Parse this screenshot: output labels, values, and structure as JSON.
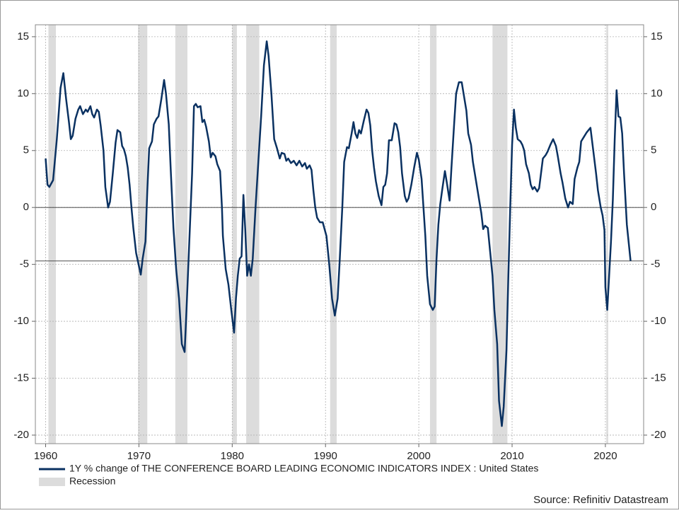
{
  "chart_data": {
    "type": "line",
    "x": [
      1960.0,
      1960.2,
      1960.4,
      1960.8,
      1961.2,
      1961.6,
      1961.9,
      1962.2,
      1962.5,
      1962.7,
      1962.9,
      1963.2,
      1963.5,
      1963.7,
      1964.0,
      1964.3,
      1964.5,
      1964.8,
      1965.0,
      1965.2,
      1965.5,
      1965.7,
      1965.9,
      1966.2,
      1966.4,
      1966.7,
      1966.9,
      1967.2,
      1967.5,
      1967.7,
      1968.0,
      1968.2,
      1968.4,
      1968.6,
      1968.8,
      1969.0,
      1969.2,
      1969.4,
      1969.7,
      1970.2,
      1970.4,
      1970.7,
      1970.9,
      1971.1,
      1971.4,
      1971.6,
      1971.9,
      1972.1,
      1972.4,
      1972.7,
      1972.9,
      1973.2,
      1973.4,
      1973.7,
      1974.0,
      1974.3,
      1974.6,
      1974.9,
      1975.1,
      1975.4,
      1975.7,
      1975.9,
      1976.1,
      1976.3,
      1976.6,
      1976.8,
      1977.0,
      1977.2,
      1977.5,
      1977.7,
      1977.9,
      1978.2,
      1978.4,
      1978.7,
      1978.9,
      1979.0,
      1979.3,
      1979.6,
      1979.9,
      1980.2,
      1980.4,
      1980.6,
      1980.8,
      1981.0,
      1981.2,
      1981.4,
      1981.6,
      1981.8,
      1982.0,
      1982.2,
      1982.5,
      1982.8,
      1983.1,
      1983.4,
      1983.7,
      1983.9,
      1984.2,
      1984.5,
      1984.8,
      1985.1,
      1985.3,
      1985.6,
      1985.8,
      1986.0,
      1986.3,
      1986.6,
      1986.9,
      1987.2,
      1987.5,
      1987.8,
      1988.0,
      1988.3,
      1988.5,
      1988.7,
      1988.9,
      1989.1,
      1989.4,
      1989.7,
      1990.1,
      1990.4,
      1990.7,
      1991.0,
      1991.3,
      1991.5,
      1991.8,
      1992.0,
      1992.3,
      1992.5,
      1992.8,
      1993.0,
      1993.2,
      1993.4,
      1993.6,
      1993.8,
      1994.1,
      1994.4,
      1994.6,
      1994.8,
      1995.0,
      1995.2,
      1995.4,
      1995.7,
      1996.0,
      1996.2,
      1996.4,
      1996.6,
      1996.8,
      1997.1,
      1997.4,
      1997.6,
      1997.8,
      1998.0,
      1998.2,
      1998.5,
      1998.7,
      1998.9,
      1999.2,
      1999.5,
      1999.8,
      2000.0,
      2000.3,
      2000.5,
      2000.7,
      2000.9,
      2001.2,
      2001.5,
      2001.7,
      2001.9,
      2002.1,
      2002.3,
      2002.5,
      2002.8,
      2003.0,
      2003.3,
      2003.5,
      2003.8,
      2004.0,
      2004.3,
      2004.6,
      2004.8,
      2005.1,
      2005.3,
      2005.6,
      2005.8,
      2006.0,
      2006.2,
      2006.5,
      2006.7,
      2006.9,
      2007.1,
      2007.4,
      2007.6,
      2007.9,
      2008.1,
      2008.4,
      2008.6,
      2008.9,
      2009.1,
      2009.4,
      2009.6,
      2009.8,
      2010.0,
      2010.2,
      2010.4,
      2010.6,
      2010.9,
      2011.1,
      2011.3,
      2011.5,
      2011.8,
      2012.0,
      2012.2,
      2012.4,
      2012.7,
      2012.9,
      2013.1,
      2013.3,
      2013.6,
      2013.8,
      2014.1,
      2014.4,
      2014.7,
      2014.9,
      2015.2,
      2015.4,
      2015.7,
      2016.0,
      2016.2,
      2016.5,
      2016.7,
      2017.0,
      2017.2,
      2017.4,
      2017.7,
      2018.0,
      2018.4,
      2018.7,
      2019.0,
      2019.2,
      2019.5,
      2019.7,
      2019.9,
      2020.0,
      2020.2,
      2020.4,
      2020.6,
      2020.8,
      2021.0,
      2021.2,
      2021.4,
      2021.6,
      2021.8,
      2022.0,
      2022.3,
      2022.7
    ],
    "series": [
      {
        "name": "1Y % change of THE CONFERENCE BOARD LEADING ECONOMIC INDICATORS INDEX : United States",
        "color": "#0a3161",
        "values": [
          4.3,
          2.0,
          1.8,
          2.4,
          6.0,
          10.5,
          11.8,
          9.5,
          7.5,
          6.0,
          6.3,
          7.8,
          8.6,
          8.9,
          8.2,
          8.6,
          8.4,
          8.9,
          8.2,
          7.9,
          8.6,
          8.4,
          7.2,
          5.0,
          1.8,
          0.0,
          0.5,
          3.0,
          5.7,
          6.8,
          6.6,
          5.4,
          5.1,
          4.5,
          3.5,
          2.0,
          0.0,
          -1.8,
          -4.0,
          -5.9,
          -4.5,
          -3.0,
          1.5,
          5.2,
          5.8,
          7.3,
          7.8,
          8.0,
          9.5,
          11.2,
          10.0,
          7.3,
          3.5,
          -1.8,
          -5.5,
          -8.0,
          -12.0,
          -12.7,
          -9.0,
          -3.0,
          3.0,
          8.9,
          9.1,
          8.8,
          8.9,
          7.5,
          7.7,
          7.1,
          5.8,
          4.4,
          4.8,
          4.5,
          3.8,
          3.2,
          0.0,
          -2.5,
          -5.4,
          -6.8,
          -9.0,
          -11.0,
          -8.0,
          -6.0,
          -4.5,
          -4.3,
          1.1,
          -2.0,
          -6.0,
          -5.0,
          -6.0,
          -4.5,
          0.0,
          4.0,
          8.0,
          12.5,
          14.6,
          13.3,
          10.0,
          6.0,
          5.2,
          4.3,
          4.8,
          4.7,
          4.1,
          4.3,
          3.9,
          4.1,
          3.7,
          4.1,
          3.6,
          3.9,
          3.4,
          3.7,
          3.3,
          1.5,
          0.0,
          -0.9,
          -1.3,
          -1.3,
          -2.5,
          -5.0,
          -8.0,
          -9.5,
          -8.0,
          -5.0,
          0.0,
          4.0,
          5.3,
          5.2,
          6.5,
          7.5,
          6.5,
          6.1,
          6.8,
          6.5,
          7.6,
          8.6,
          8.3,
          7.2,
          5.0,
          3.5,
          2.3,
          1.0,
          0.2,
          1.8,
          2.0,
          3.0,
          5.9,
          5.9,
          7.4,
          7.3,
          6.6,
          5.3,
          3.0,
          1.0,
          0.5,
          0.8,
          2.0,
          3.5,
          4.8,
          4.2,
          2.5,
          0.0,
          -2.5,
          -6.0,
          -8.5,
          -9.0,
          -8.7,
          -4.5,
          -1.5,
          0.3,
          1.5,
          3.2,
          2.2,
          0.6,
          3.5,
          7.5,
          10.0,
          11.0,
          11.0,
          10.0,
          8.5,
          6.5,
          5.5,
          4.0,
          3.0,
          2.0,
          0.5,
          -0.5,
          -1.9,
          -1.6,
          -1.8,
          -3.5,
          -6.0,
          -9.0,
          -12.0,
          -17.0,
          -19.2,
          -17.5,
          -12.5,
          -6.0,
          0.0,
          5.5,
          8.6,
          7.0,
          6.0,
          5.8,
          5.5,
          5.0,
          3.8,
          3.0,
          2.0,
          1.6,
          1.8,
          1.4,
          1.7,
          3.0,
          4.3,
          4.6,
          4.9,
          5.5,
          6.0,
          5.4,
          4.5,
          3.0,
          2.2,
          0.8,
          0.0,
          0.5,
          0.3,
          2.5,
          3.5,
          4.0,
          5.8,
          6.2,
          6.6,
          7.0,
          5.0,
          3.0,
          1.5,
          0.0,
          -0.7,
          -2.0,
          -7.0,
          -9.0,
          -6.0,
          -3.0,
          0.7,
          6.0,
          10.3,
          8.0,
          7.9,
          6.5,
          3.0,
          -1.5,
          -4.7
        ]
      }
    ],
    "recessions": {
      "name": "Recession",
      "color": "#dcdcdc",
      "spans": [
        [
          1960.3,
          1961.1
        ],
        [
          1969.9,
          1970.9
        ],
        [
          1973.9,
          1975.2
        ],
        [
          1980.0,
          1980.5
        ],
        [
          1981.5,
          1982.9
        ],
        [
          1990.5,
          1991.2
        ],
        [
          2001.2,
          2001.9
        ],
        [
          2007.9,
          2009.5
        ],
        [
          2020.1,
          2020.3
        ]
      ]
    },
    "reference_lines": [
      0,
      -4.7
    ],
    "xlim": [
      1958.9,
      2024.1
    ],
    "xticks": [
      1960,
      1970,
      1980,
      1990,
      2000,
      2010,
      2020
    ],
    "ylim": [
      -20.75,
      16.05
    ],
    "yticks": [
      -20,
      -15,
      -10,
      -5,
      0,
      5,
      10,
      15
    ],
    "y2lim": [
      -20.75,
      16.05
    ],
    "y2ticks": [
      -20,
      -15,
      -10,
      -5,
      0,
      5,
      10,
      15
    ],
    "grid": true,
    "source": "Source: Refinitiv Datastream"
  }
}
